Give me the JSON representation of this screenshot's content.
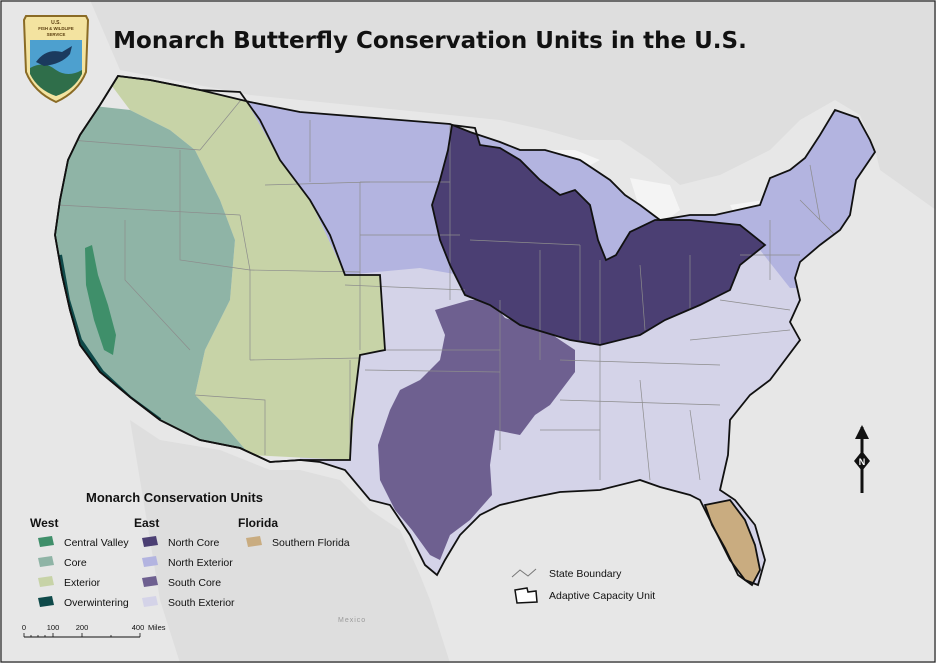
{
  "title": "Monarch Butterfly Conservation Units in the U.S.",
  "logo": {
    "agency_text": [
      "U.S.",
      "FISH & WILDLIFE",
      "SERVICE"
    ],
    "icon": "fws-shield-logo"
  },
  "colors": {
    "central_valley": "#3f8f6a",
    "west_core": "#8fb4a6",
    "west_exterior": "#c7d3a7",
    "overwintering": "#0f4a4a",
    "north_core": "#4b3f73",
    "north_exterior": "#b3b4e0",
    "south_core": "#6e6090",
    "south_exterior": "#d4d3e8",
    "southern_florida": "#c9ac80",
    "background": "#e7e7e7",
    "land_outside": "#dedede"
  },
  "legend": {
    "heading": "Monarch Conservation Units",
    "groups": [
      {
        "name": "West",
        "items": [
          {
            "label": "Central Valley",
            "color": "#3f8f6a"
          },
          {
            "label": "Core",
            "color": "#8fb4a6"
          },
          {
            "label": "Exterior",
            "color": "#c7d3a7"
          },
          {
            "label": "Overwintering",
            "color": "#0f4a4a"
          }
        ]
      },
      {
        "name": "East",
        "items": [
          {
            "label": "North Core",
            "color": "#4b3f73"
          },
          {
            "label": "North Exterior",
            "color": "#b3b4e0"
          },
          {
            "label": "South Core",
            "color": "#6e6090"
          },
          {
            "label": "South Exterior",
            "color": "#d4d3e8"
          }
        ]
      },
      {
        "name": "Florida",
        "items": [
          {
            "label": "Southern Florida",
            "color": "#c9ac80"
          }
        ]
      }
    ],
    "boundary_items": [
      {
        "label": "State Boundary",
        "icon": "state-boundary-line-icon"
      },
      {
        "label": "Adaptive Capacity Unit",
        "icon": "adaptive-capacity-unit-icon"
      }
    ]
  },
  "scale_bar": {
    "ticks": [
      "0",
      "100",
      "200",
      "400"
    ],
    "unit": "Miles"
  },
  "north_arrow": {
    "label": "N",
    "icon": "north-arrow-icon"
  },
  "places": {
    "mexico": "Mexico"
  }
}
